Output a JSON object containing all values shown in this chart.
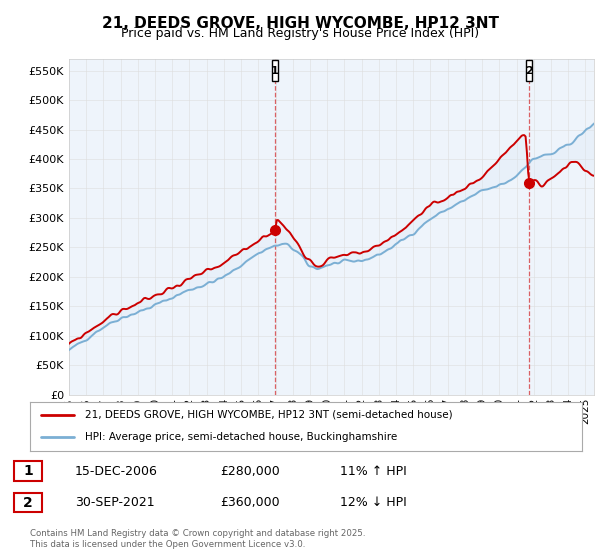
{
  "title": "21, DEEDS GROVE, HIGH WYCOMBE, HP12 3NT",
  "subtitle": "Price paid vs. HM Land Registry's House Price Index (HPI)",
  "ytick_values": [
    0,
    50000,
    100000,
    150000,
    200000,
    250000,
    300000,
    350000,
    400000,
    450000,
    500000,
    550000
  ],
  "ylim": [
    0,
    570000
  ],
  "xlim_start": 1995.0,
  "xlim_end": 2025.5,
  "sale1_year": 2006.96,
  "sale1_price": 280000,
  "sale2_year": 2021.75,
  "sale2_price": 360000,
  "hpi_color": "#7bafd4",
  "hpi_fill_color": "#ddeaf5",
  "price_color": "#cc0000",
  "vline_color": "#cc0000",
  "bg_color": "#ffffff",
  "grid_color": "#dddddd",
  "legend_label_red": "21, DEEDS GROVE, HIGH WYCOMBE, HP12 3NT (semi-detached house)",
  "legend_label_blue": "HPI: Average price, semi-detached house, Buckinghamshire",
  "annotation1_date": "15-DEC-2006",
  "annotation1_price": "£280,000",
  "annotation1_hpi": "11% ↑ HPI",
  "annotation2_date": "30-SEP-2021",
  "annotation2_price": "£360,000",
  "annotation2_hpi": "12% ↓ HPI",
  "footer": "Contains HM Land Registry data © Crown copyright and database right 2025.\nThis data is licensed under the Open Government Licence v3.0.",
  "xtick_years": [
    1995,
    1996,
    1997,
    1998,
    1999,
    2000,
    2001,
    2002,
    2003,
    2004,
    2005,
    2006,
    2007,
    2008,
    2009,
    2010,
    2011,
    2012,
    2013,
    2014,
    2015,
    2016,
    2017,
    2018,
    2019,
    2020,
    2021,
    2022,
    2023,
    2024,
    2025
  ]
}
